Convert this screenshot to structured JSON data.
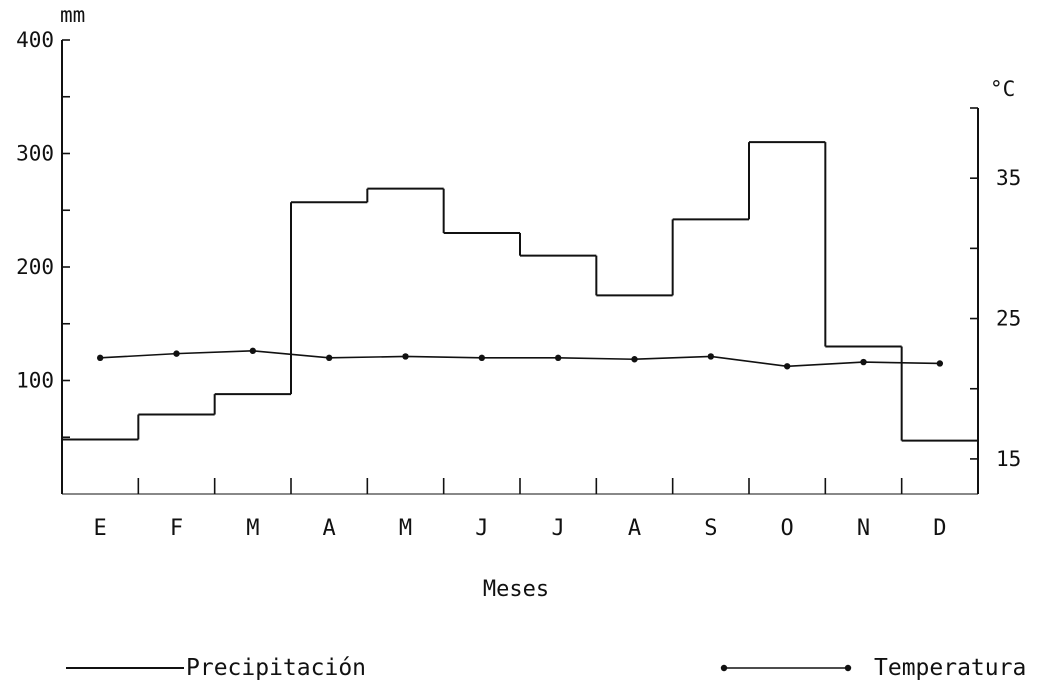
{
  "chart_data": {
    "type": "bar",
    "xlabel": "Meses",
    "categories": [
      "E",
      "F",
      "M",
      "A",
      "M",
      "J",
      "J",
      "A",
      "S",
      "O",
      "N",
      "D"
    ],
    "y_left": {
      "unit": "mm",
      "ylim": [
        0,
        400
      ],
      "ticks": [
        100,
        200,
        300,
        400
      ]
    },
    "y_right": {
      "unit": "°C",
      "ylim": [
        12.5,
        40
      ],
      "ticks": [
        15,
        25,
        35
      ]
    },
    "series": [
      {
        "name": "Precipitación",
        "type": "step",
        "axis": "left",
        "values": [
          48,
          70,
          88,
          257,
          269,
          230,
          210,
          175,
          242,
          310,
          130,
          47
        ]
      },
      {
        "name": "Temperatura",
        "type": "line",
        "axis": "right",
        "values": [
          22.2,
          22.5,
          22.7,
          22.2,
          22.3,
          22.2,
          22.2,
          22.1,
          22.3,
          21.6,
          21.9,
          21.8
        ]
      }
    ],
    "grid": false,
    "legend": "bottom"
  }
}
